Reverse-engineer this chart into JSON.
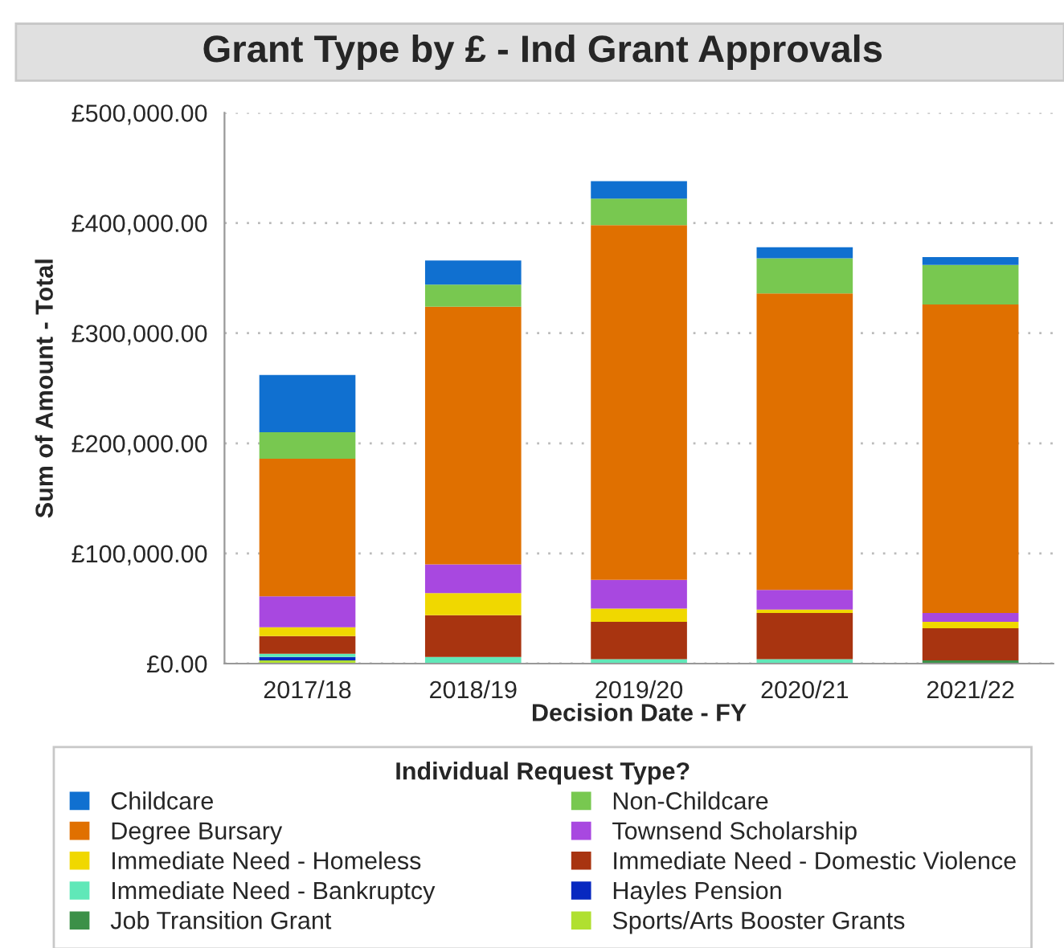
{
  "chart_data": {
    "type": "bar",
    "title": "Grant Type by £ - Ind Grant Approvals",
    "xlabel": "Decision Date - FY",
    "ylabel": "Sum of Amount - Total",
    "legend_title": "Individual Request Type?",
    "categories": [
      "2017/18",
      "2018/19",
      "2019/20",
      "2020/21",
      "2021/22"
    ],
    "stacked": true,
    "series": [
      {
        "name": "Sports/Arts Booster Grants",
        "color": "#b0e030",
        "values": [
          3000,
          0,
          0,
          0,
          0
        ]
      },
      {
        "name": "Job Transition Grant",
        "color": "#3c9048",
        "values": [
          0,
          0,
          0,
          0,
          3000
        ]
      },
      {
        "name": "Hayles Pension",
        "color": "#0828c0",
        "values": [
          3000,
          0,
          0,
          0,
          0
        ]
      },
      {
        "name": "Immediate Need - Bankruptcy",
        "color": "#60e8b8",
        "values": [
          3000,
          6000,
          4000,
          4000,
          0
        ]
      },
      {
        "name": "Immediate Need - Domestic Violence",
        "color": "#a83410",
        "values": [
          16000,
          38000,
          34000,
          42000,
          29000
        ]
      },
      {
        "name": "Immediate Need - Homeless",
        "color": "#f0d800",
        "values": [
          8000,
          20000,
          12000,
          3000,
          6000
        ]
      },
      {
        "name": "Townsend Scholarship",
        "color": "#a848e0",
        "values": [
          28000,
          26000,
          26000,
          18000,
          8000
        ]
      },
      {
        "name": "Degree Bursary",
        "color": "#e07000",
        "values": [
          125000,
          234000,
          322000,
          269000,
          280000
        ]
      },
      {
        "name": "Non-Childcare",
        "color": "#78c850",
        "values": [
          24000,
          20000,
          24000,
          32000,
          36000
        ]
      },
      {
        "name": "Childcare",
        "color": "#1070d0",
        "values": [
          52000,
          22000,
          16000,
          10000,
          7000
        ]
      }
    ],
    "ylim": [
      0,
      500000
    ],
    "yticks": [
      {
        "value": 0,
        "label": "£0.00"
      },
      {
        "value": 100000,
        "label": "£100,000.00"
      },
      {
        "value": 200000,
        "label": "£200,000.00"
      },
      {
        "value": 300000,
        "label": "£300,000.00"
      },
      {
        "value": 400000,
        "label": "£400,000.00"
      },
      {
        "value": 500000,
        "label": "£500,000.00"
      }
    ],
    "grid": "y",
    "legend": "bottom"
  }
}
